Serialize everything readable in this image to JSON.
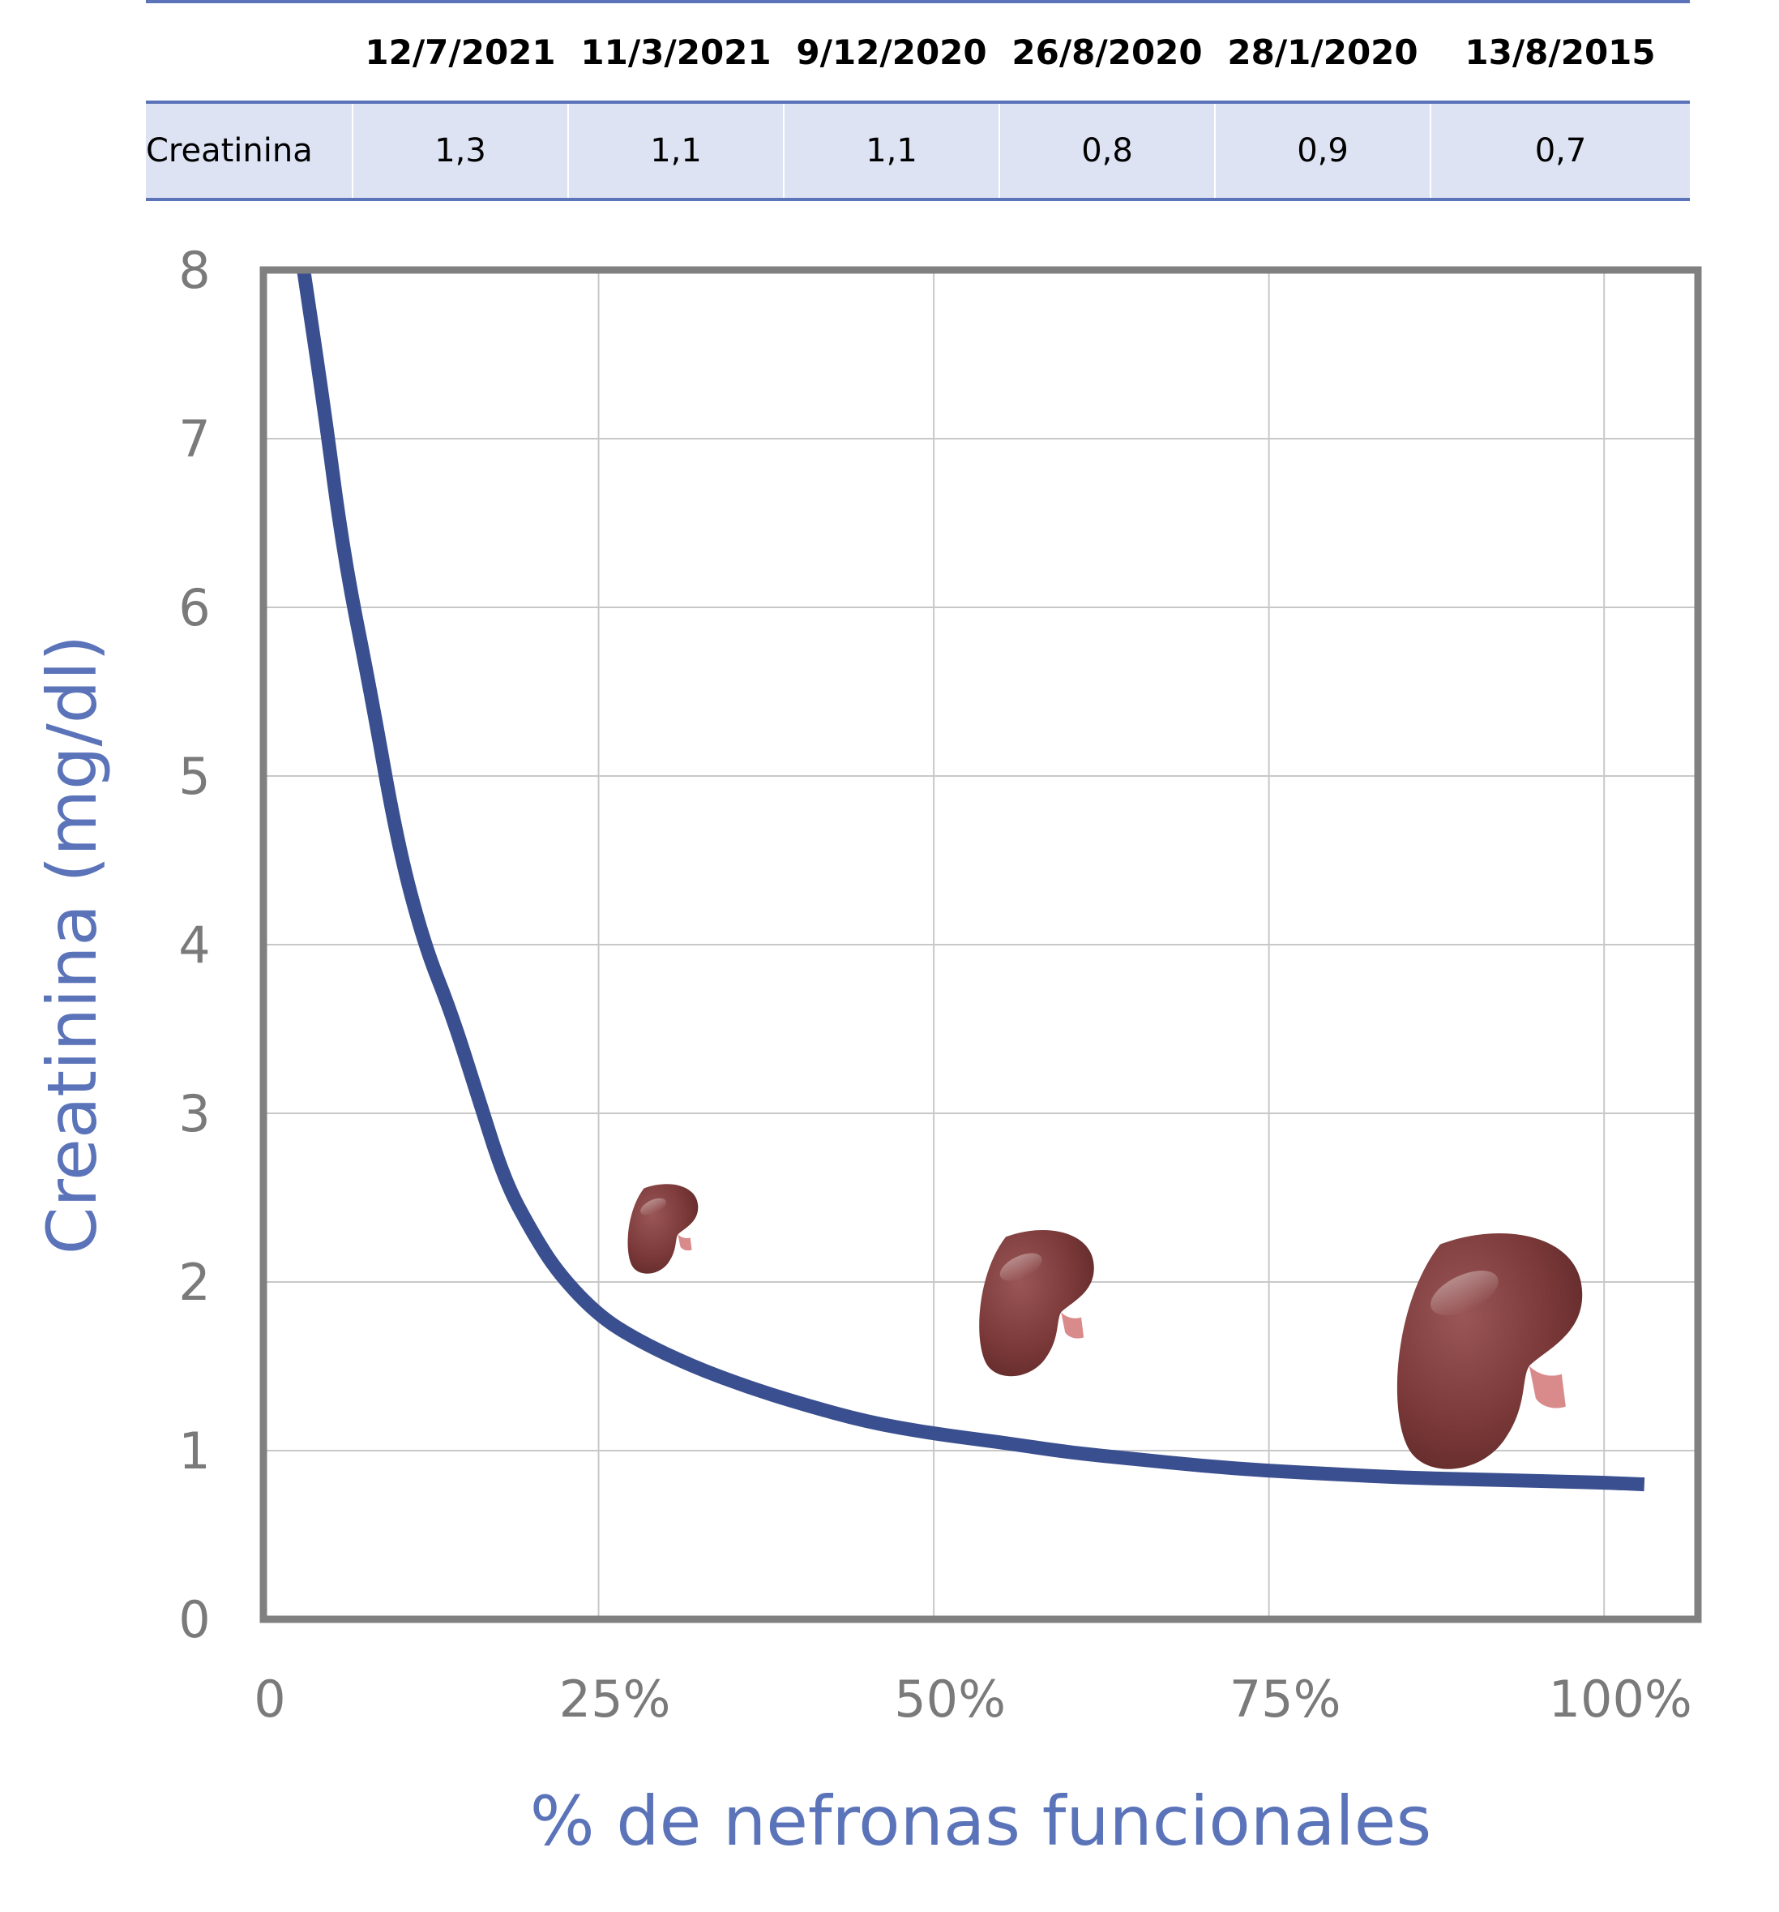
{
  "lab_table": {
    "header": [
      "",
      "12/7/2021",
      "11/3/2021",
      "9/12/2020",
      "26/8/2020",
      "28/1/2020",
      "13/8/2015"
    ],
    "rows": [
      {
        "label": "Creatinina",
        "values": [
          "1,3",
          "1,1",
          "1,1",
          "0,8",
          "0,9",
          "0,7"
        ]
      }
    ]
  },
  "chart_data": {
    "type": "line",
    "xlabel": "% de nefronas funcionales",
    "ylabel": "Creatinina (mg/dl)",
    "xlim": [
      0,
      107
    ],
    "ylim": [
      0,
      8
    ],
    "x_ticks": [
      0,
      25,
      50,
      75,
      100
    ],
    "x_tick_labels": [
      "0",
      "25%",
      "50%",
      "75%",
      "100%"
    ],
    "y_ticks": [
      0,
      1,
      2,
      3,
      4,
      5,
      6,
      7,
      8
    ],
    "y_tick_labels": [
      "0",
      "1",
      "2",
      "3",
      "4",
      "5",
      "6",
      "7",
      "8"
    ],
    "grid": true,
    "series": [
      {
        "x": [
          3,
          4.5,
          6,
          8,
          10,
          12,
          14,
          16,
          18,
          20,
          22,
          25,
          28,
          32,
          36,
          40,
          45,
          50,
          55,
          60,
          65,
          70,
          75,
          80,
          85,
          90,
          95,
          100,
          103
        ],
        "y": [
          8,
          7.2,
          6.3,
          5.5,
          4.6,
          4.0,
          3.6,
          3.1,
          2.6,
          2.3,
          2.05,
          1.8,
          1.65,
          1.5,
          1.38,
          1.28,
          1.17,
          1.1,
          1.05,
          0.99,
          0.95,
          0.91,
          0.88,
          0.86,
          0.84,
          0.83,
          0.82,
          0.81,
          0.8
        ],
        "color": "#3a4f8f"
      }
    ],
    "annotations": [
      {
        "type": "kidney-icon",
        "x": 30,
        "y": 2.3,
        "scale": 0.38
      },
      {
        "type": "kidney-icon",
        "x": 58,
        "y": 1.85,
        "scale": 0.62
      },
      {
        "type": "kidney-icon",
        "x": 92,
        "y": 1.55,
        "scale": 1.0
      }
    ],
    "colors": {
      "axis_label": "#5b73b9",
      "tick_label": "#7a7a7a",
      "frame": "#808080",
      "grid": "#c8c8c8",
      "kidney": "#7a3838"
    }
  }
}
